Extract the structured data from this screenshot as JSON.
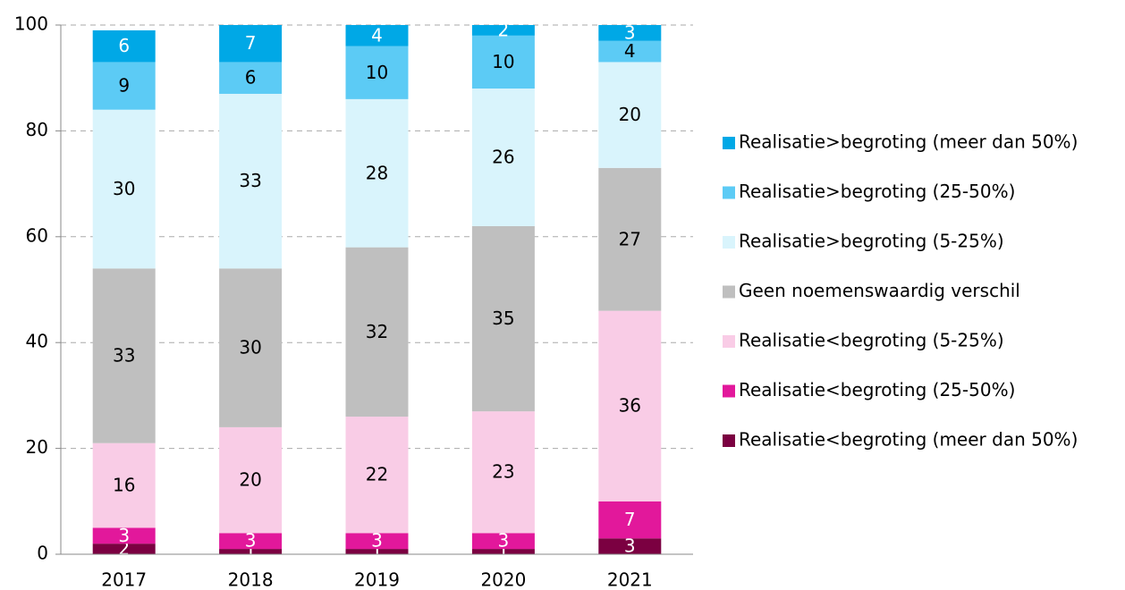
{
  "chart_data": {
    "type": "stacked_bar",
    "categories": [
      "2017",
      "2018",
      "2019",
      "2020",
      "2021"
    ],
    "series": [
      {
        "name": "Realisatie<begroting (meer dan 50%)",
        "color": "#7b0041",
        "label_color": "#ffffff",
        "values": [
          2,
          1,
          1,
          1,
          3
        ]
      },
      {
        "name": "Realisatie<begroting (25-50%)",
        "color": "#e2189b",
        "label_color": "#ffffff",
        "values": [
          3,
          3,
          3,
          3,
          7
        ]
      },
      {
        "name": "Realisatie<begroting (5-25%)",
        "color": "#f9cce6",
        "label_color": "#000000",
        "values": [
          16,
          20,
          22,
          23,
          36
        ]
      },
      {
        "name": "Geen noemenswaardig verschil",
        "color": "#bfbfbf",
        "label_color": "#000000",
        "values": [
          33,
          30,
          32,
          35,
          27
        ]
      },
      {
        "name": "Realisatie>begroting (5-25%)",
        "color": "#d9f4fc",
        "label_color": "#000000",
        "values": [
          30,
          33,
          28,
          26,
          20
        ]
      },
      {
        "name": "Realisatie>begroting (25-50%)",
        "color": "#5ccbf5",
        "label_color": "#000000",
        "values": [
          9,
          6,
          10,
          10,
          4
        ]
      },
      {
        "name": "Realisatie>begroting (meer dan 50%)",
        "color": "#00a8e6",
        "label_color": "#ffffff",
        "values": [
          6,
          7,
          4,
          2,
          3
        ]
      }
    ],
    "ylim": [
      0,
      100
    ],
    "yticks": [
      0,
      20,
      40,
      60,
      80,
      100
    ],
    "grid": true,
    "legend": "right"
  }
}
